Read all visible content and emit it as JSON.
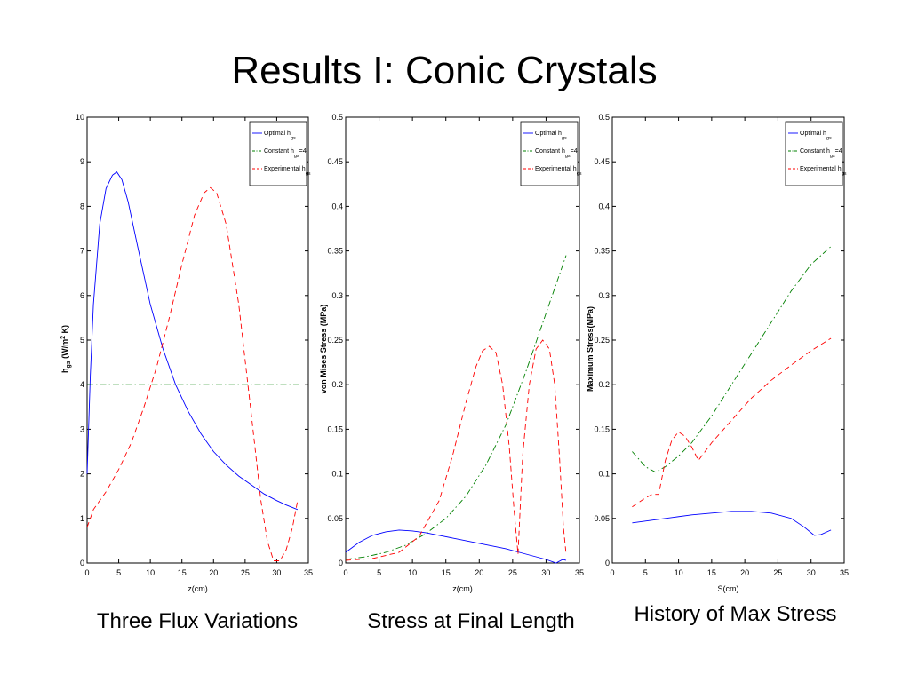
{
  "slide": {
    "title": "Results I: Conic Crystals",
    "captions": [
      "Three Flux Variations",
      "Stress at Final Length",
      "History of Max Stress"
    ]
  },
  "legend": {
    "entries": [
      {
        "text": "Optimal h",
        "sub": "gs",
        "suffix": "",
        "color": "#0000ff",
        "dash": "solid"
      },
      {
        "text": "Constant h",
        "sub": "gs",
        "suffix": "=4",
        "color": "#008000",
        "dash": "dashdot"
      },
      {
        "text": "Experimental h",
        "sub": "gs",
        "suffix": "",
        "color": "#ff0000",
        "dash": "dashed"
      }
    ]
  },
  "chart_data": [
    {
      "type": "line",
      "xlabel": "z(cm)",
      "ylabel": "h gs (W/m2 K)",
      "ylabel_parts": {
        "sym": "h",
        "sub": "gs",
        "unit_pre": "(W/m",
        "sup": "2",
        "unit_post": " K)"
      },
      "xlim": [
        0,
        35
      ],
      "ylim": [
        0,
        10
      ],
      "xticks": [
        0,
        5,
        10,
        15,
        20,
        25,
        30,
        35
      ],
      "yticks": [
        0,
        1,
        2,
        3,
        4,
        5,
        6,
        7,
        8,
        9,
        10
      ],
      "legend_position": "top-right",
      "series": [
        {
          "name": "Optimal h gs",
          "color": "#0000ff",
          "dash": "solid",
          "x": [
            0,
            0.5,
            1,
            2,
            3,
            4,
            4.7,
            5.5,
            6.5,
            8,
            10,
            12,
            14,
            16,
            18,
            20,
            22,
            24,
            26,
            28,
            30,
            31.5,
            33.3
          ],
          "y": [
            2.0,
            4.2,
            5.8,
            7.6,
            8.4,
            8.7,
            8.77,
            8.6,
            8.1,
            7.1,
            5.8,
            4.8,
            4.0,
            3.4,
            2.9,
            2.5,
            2.2,
            1.95,
            1.75,
            1.55,
            1.4,
            1.3,
            1.2
          ]
        },
        {
          "name": "Constant h gs=4",
          "color": "#008000",
          "dash": "dashdot",
          "x": [
            0,
            33.5
          ],
          "y": [
            4,
            4
          ]
        },
        {
          "name": "Experimental h gs",
          "color": "#ff0000",
          "dash": "dashed",
          "x": [
            0,
            1,
            3,
            5,
            7,
            9,
            11,
            13,
            15,
            17,
            18.5,
            19.5,
            20.5,
            22,
            24,
            26,
            27.5,
            28.5,
            29.5,
            30.5,
            31.5,
            32.5,
            33.3
          ],
          "y": [
            0.8,
            1.2,
            1.6,
            2.1,
            2.7,
            3.5,
            4.4,
            5.5,
            6.7,
            7.8,
            8.3,
            8.42,
            8.3,
            7.6,
            5.8,
            3.3,
            1.4,
            0.5,
            0.05,
            0.05,
            0.3,
            0.8,
            1.4
          ]
        }
      ]
    },
    {
      "type": "line",
      "xlabel": "z(cm)",
      "ylabel": "von Mises Stress (MPa)",
      "xlim": [
        0,
        35
      ],
      "ylim": [
        0,
        0.5
      ],
      "xticks": [
        0,
        5,
        10,
        15,
        20,
        25,
        30,
        35
      ],
      "yticks": [
        0,
        0.05,
        0.1,
        0.15,
        0.2,
        0.25,
        0.3,
        0.35,
        0.4,
        0.45,
        0.5
      ],
      "legend_position": "top-right",
      "series": [
        {
          "name": "Optimal h gs",
          "color": "#0000ff",
          "dash": "solid",
          "x": [
            0,
            2,
            4,
            6,
            8,
            10,
            12,
            14,
            16,
            18,
            20,
            22,
            24,
            26,
            28,
            30,
            31.5,
            32.5,
            33
          ],
          "y": [
            0.012,
            0.023,
            0.031,
            0.035,
            0.037,
            0.036,
            0.034,
            0.031,
            0.028,
            0.025,
            0.022,
            0.019,
            0.016,
            0.012,
            0.008,
            0.004,
            0.0,
            0.004,
            0.003
          ]
        },
        {
          "name": "Constant h gs=4",
          "color": "#008000",
          "dash": "dashdot",
          "x": [
            0,
            3,
            6,
            9,
            12,
            15,
            18,
            21,
            24,
            27,
            30,
            33
          ],
          "y": [
            0.004,
            0.007,
            0.012,
            0.02,
            0.033,
            0.05,
            0.075,
            0.11,
            0.155,
            0.215,
            0.28,
            0.345
          ]
        },
        {
          "name": "Experimental h gs",
          "color": "#ff0000",
          "dash": "dashed",
          "x": [
            0,
            4,
            8,
            11,
            14,
            16,
            18,
            19.5,
            20.5,
            21.5,
            22.5,
            23.5,
            24.5,
            25.2,
            25.8,
            26.5,
            27.5,
            28.5,
            29.5,
            30.5,
            31.3,
            32,
            32.6,
            33
          ],
          "y": [
            0.003,
            0.005,
            0.012,
            0.03,
            0.07,
            0.12,
            0.18,
            0.22,
            0.238,
            0.243,
            0.236,
            0.2,
            0.13,
            0.06,
            0.01,
            0.12,
            0.2,
            0.24,
            0.25,
            0.24,
            0.2,
            0.12,
            0.04,
            0.01
          ]
        }
      ]
    },
    {
      "type": "line",
      "xlabel": "S(cm)",
      "ylabel": "Maximum Stress(MPa)",
      "xlim": [
        0,
        35
      ],
      "ylim": [
        0,
        0.5
      ],
      "xticks": [
        0,
        5,
        10,
        15,
        20,
        25,
        30,
        35
      ],
      "yticks": [
        0,
        0.05,
        0.1,
        0.15,
        0.2,
        0.25,
        0.3,
        0.35,
        0.4,
        0.45,
        0.5
      ],
      "legend_position": "top-right",
      "series": [
        {
          "name": "Optimal h gs",
          "color": "#0000ff",
          "dash": "solid",
          "x": [
            3,
            6,
            9,
            12,
            15,
            18,
            21,
            24,
            27,
            29,
            30.5,
            31.5,
            33
          ],
          "y": [
            0.045,
            0.048,
            0.051,
            0.054,
            0.056,
            0.058,
            0.058,
            0.056,
            0.05,
            0.04,
            0.031,
            0.032,
            0.037
          ]
        },
        {
          "name": "Constant h gs=4",
          "color": "#008000",
          "dash": "dashdot",
          "x": [
            3,
            5,
            6.5,
            8,
            10,
            12,
            13,
            15,
            18,
            21,
            24,
            27,
            30,
            33
          ],
          "y": [
            0.125,
            0.108,
            0.102,
            0.108,
            0.12,
            0.135,
            0.145,
            0.165,
            0.2,
            0.235,
            0.27,
            0.305,
            0.335,
            0.355
          ]
        },
        {
          "name": "Experimental h gs",
          "color": "#ff0000",
          "dash": "dashed",
          "x": [
            3,
            5,
            6,
            7,
            8,
            9,
            10,
            11,
            12,
            13,
            15,
            18,
            21,
            24,
            27,
            30,
            33
          ],
          "y": [
            0.063,
            0.073,
            0.077,
            0.077,
            0.115,
            0.138,
            0.147,
            0.142,
            0.13,
            0.115,
            0.135,
            0.16,
            0.185,
            0.205,
            0.222,
            0.238,
            0.252
          ]
        }
      ]
    }
  ]
}
